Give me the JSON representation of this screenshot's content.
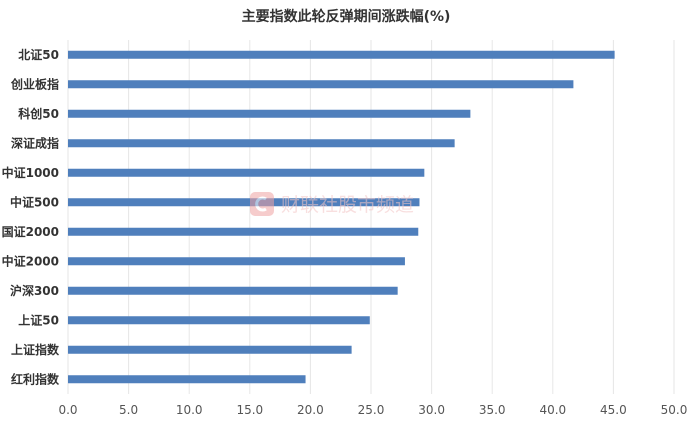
{
  "chart_data": {
    "type": "bar",
    "orientation": "horizontal",
    "title": "主要指数此轮反弹期间涨跌幅(%)",
    "categories": [
      "北证50",
      "创业板指",
      "科创50",
      "深证成指",
      "中证1000",
      "中证500",
      "国证2000",
      "中证2000",
      "沪深300",
      "上证50",
      "上证指数",
      "红利指数"
    ],
    "values": [
      45.1,
      41.7,
      33.2,
      31.9,
      29.4,
      29.0,
      28.9,
      27.8,
      27.2,
      24.9,
      23.4,
      19.6
    ],
    "xlim": [
      0,
      50
    ],
    "xticks": [
      "0.0",
      "5.0",
      "10.0",
      "15.0",
      "20.0",
      "25.0",
      "30.0",
      "35.0",
      "40.0",
      "45.0",
      "50.0"
    ],
    "xlabel": "",
    "ylabel": "",
    "grid": "vertical",
    "bar_color": "#4f7fbc"
  },
  "watermark": {
    "icon": "cailian-logo-icon",
    "text": "财联社股市频道",
    "color": "#f3c6c6"
  }
}
